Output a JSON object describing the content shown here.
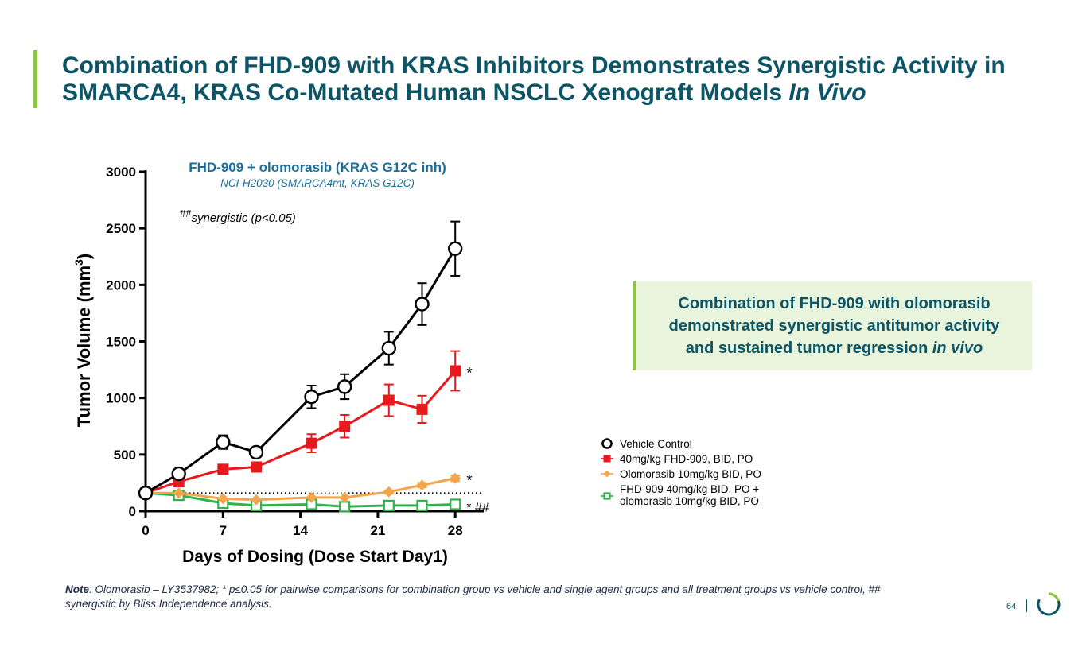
{
  "title": {
    "line1": "Combination of FHD-909 with KRAS Inhibitors Demonstrates Synergistic Activity in",
    "line2": "SMARCA4, KRAS Co-Mutated Human NSCLC Xenograft Models ",
    "line2_italic": "In Vivo"
  },
  "callout": {
    "line1": "Combination of FHD-909 with olomorasib",
    "line2": "demonstrated synergistic antitumor activity",
    "line3": "and sustained tumor regression ",
    "line3_italic": "in vivo"
  },
  "note": {
    "label": "Note",
    "text": ": Olomorasib – LY3537982; * p≤0.05 for pairwise comparisons for combination group vs vehicle and single agent groups and all treatment groups vs vehicle control, ## synergistic by Bliss Independence analysis."
  },
  "page_number": "64",
  "colors": {
    "title": "#0b5566",
    "accent_green": "#8dc63f",
    "callout_bg": "#e9f4dc",
    "vehicle": "#000000",
    "fhd909": "#e8191d",
    "olomorasib": "#f5a54a",
    "combo": "#2db34a"
  },
  "chart_data": {
    "type": "line",
    "title": "FHD-909 + olomorasib (KRAS G12C inh)",
    "subtitle": "NCI-H2030 (SMARCA4mt, KRAS G12C)",
    "annotation": {
      "prefix": "##",
      "text": "synergistic (p<0.05)"
    },
    "xlabel": "Days of Dosing (Dose Start Day1)",
    "ylabel": "Tumor Volume (mm",
    "ylabel_sup": "3",
    "ylabel_end": ")",
    "xlim": [
      0,
      30
    ],
    "ylim": [
      0,
      3000
    ],
    "xticks": [
      0,
      7,
      14,
      21,
      28
    ],
    "xtick_labels": [
      "0",
      "7",
      "14",
      "21",
      "28"
    ],
    "yticks": [
      0,
      500,
      1000,
      1500,
      2000,
      2500,
      3000
    ],
    "ytick_labels": [
      "0",
      "500",
      "1000",
      "1500",
      "2000",
      "2500",
      "3000"
    ],
    "baseline": 160,
    "series": [
      {
        "name": "Vehicle Control",
        "marker": "open-circle",
        "color": "#000000",
        "x": [
          0,
          3,
          7,
          10,
          15,
          18,
          22,
          25,
          28
        ],
        "y": [
          160,
          330,
          610,
          520,
          1010,
          1100,
          1440,
          1830,
          2320
        ],
        "err": [
          20,
          30,
          60,
          40,
          100,
          110,
          145,
          185,
          240
        ],
        "sig": ""
      },
      {
        "name": "40mg/kg FHD-909, BID, PO",
        "marker": "filled-square",
        "color": "#e8191d",
        "x": [
          0,
          3,
          7,
          10,
          15,
          18,
          22,
          25,
          28
        ],
        "y": [
          160,
          260,
          370,
          390,
          600,
          750,
          980,
          900,
          1240
        ],
        "err": [
          20,
          25,
          35,
          40,
          80,
          100,
          140,
          120,
          175
        ],
        "sig": "*"
      },
      {
        "name": "Olomorasib 10mg/kg BID, PO",
        "marker": "filled-diamond",
        "color": "#f5a54a",
        "x": [
          0,
          3,
          7,
          10,
          15,
          18,
          22,
          25,
          28
        ],
        "y": [
          160,
          160,
          110,
          100,
          120,
          120,
          170,
          230,
          290
        ],
        "err": [
          10,
          10,
          10,
          10,
          10,
          10,
          15,
          20,
          25
        ],
        "sig": "*"
      },
      {
        "name": "FHD-909 40mg/kg BID, PO + olomorasib 10mg/kg BID, PO",
        "marker": "open-square",
        "color": "#2db34a",
        "legend_lines": [
          "FHD-909 40mg/kg BID, PO +",
          "olomorasib 10mg/kg BID, PO"
        ],
        "x": [
          0,
          3,
          7,
          10,
          15,
          18,
          22,
          25,
          28
        ],
        "y": [
          160,
          140,
          70,
          50,
          60,
          40,
          50,
          50,
          60
        ],
        "err": [
          10,
          10,
          10,
          10,
          10,
          10,
          10,
          10,
          10
        ],
        "sig": "* ##"
      }
    ]
  }
}
